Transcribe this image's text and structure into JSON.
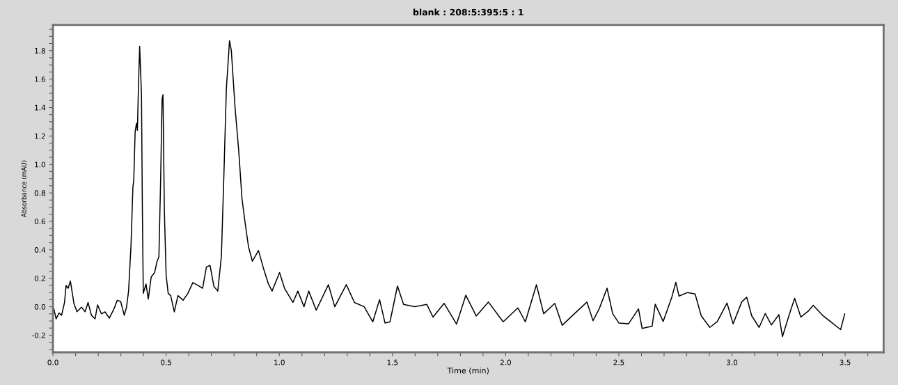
{
  "chart_data": {
    "type": "line",
    "title": "blank : 208:5:395:5 : 1",
    "xlabel": "Time (min)",
    "ylabel": "Absorbance (mAU)",
    "x": [
      0.003,
      0.014,
      0.027,
      0.038,
      0.051,
      0.058,
      0.067,
      0.077,
      0.093,
      0.106,
      0.126,
      0.142,
      0.155,
      0.17,
      0.186,
      0.197,
      0.214,
      0.23,
      0.249,
      0.268,
      0.284,
      0.299,
      0.315,
      0.325,
      0.334,
      0.345,
      0.353,
      0.357,
      0.363,
      0.369,
      0.373,
      0.378,
      0.383,
      0.391,
      0.395,
      0.399,
      0.411,
      0.421,
      0.434,
      0.449,
      0.46,
      0.468,
      0.476,
      0.482,
      0.486,
      0.492,
      0.5,
      0.509,
      0.52,
      0.536,
      0.552,
      0.575,
      0.596,
      0.618,
      0.64,
      0.661,
      0.678,
      0.694,
      0.711,
      0.728,
      0.744,
      0.755,
      0.766,
      0.78,
      0.788,
      0.804,
      0.821,
      0.835,
      0.848,
      0.864,
      0.881,
      0.908,
      0.93,
      0.952,
      0.968,
      1.001,
      1.023,
      1.06,
      1.082,
      1.109,
      1.13,
      1.163,
      1.217,
      1.245,
      1.296,
      1.332,
      1.375,
      1.413,
      1.443,
      1.467,
      1.489,
      1.522,
      1.549,
      1.598,
      1.652,
      1.679,
      1.728,
      1.783,
      1.824,
      1.87,
      1.924,
      1.989,
      2.054,
      2.087,
      2.136,
      2.168,
      2.217,
      2.25,
      2.304,
      2.359,
      2.386,
      2.413,
      2.448,
      2.473,
      2.5,
      2.543,
      2.587,
      2.603,
      2.647,
      2.661,
      2.696,
      2.734,
      2.752,
      2.766,
      2.804,
      2.837,
      2.864,
      2.902,
      2.935,
      2.978,
      3.005,
      3.043,
      3.065,
      3.087,
      3.12,
      3.147,
      3.174,
      3.207,
      3.223,
      3.261,
      3.277,
      3.304,
      3.337,
      3.359,
      3.402,
      3.435,
      3.48,
      3.498
    ],
    "series": [
      {
        "color": "#000000",
        "values": [
          -0.01,
          -0.085,
          -0.044,
          -0.06,
          0.03,
          0.15,
          0.13,
          0.18,
          0.02,
          -0.035,
          -0.003,
          -0.035,
          0.03,
          -0.06,
          -0.085,
          0.013,
          -0.05,
          -0.036,
          -0.08,
          -0.02,
          0.045,
          0.037,
          -0.06,
          -0.003,
          0.11,
          0.44,
          0.84,
          0.89,
          1.23,
          1.29,
          1.24,
          1.57,
          1.83,
          1.49,
          0.68,
          0.094,
          0.16,
          0.054,
          0.21,
          0.24,
          0.32,
          0.35,
          0.92,
          1.46,
          1.49,
          0.68,
          0.22,
          0.094,
          0.078,
          -0.036,
          0.078,
          0.046,
          0.094,
          0.17,
          0.15,
          0.13,
          0.28,
          0.29,
          0.143,
          0.11,
          0.354,
          0.92,
          1.53,
          1.87,
          1.8,
          1.41,
          1.09,
          0.76,
          0.6,
          0.42,
          0.32,
          0.395,
          0.27,
          0.16,
          0.11,
          0.24,
          0.13,
          0.03,
          0.11,
          0.0,
          0.11,
          -0.024,
          0.155,
          0.0,
          0.155,
          0.03,
          0.0,
          -0.106,
          0.05,
          -0.114,
          -0.106,
          0.146,
          0.016,
          0.0,
          0.016,
          -0.073,
          0.024,
          -0.122,
          0.081,
          -0.065,
          0.033,
          -0.106,
          -0.008,
          -0.106,
          0.155,
          -0.049,
          0.024,
          -0.13,
          -0.049,
          0.033,
          -0.098,
          -0.016,
          0.13,
          -0.049,
          -0.114,
          -0.12,
          -0.015,
          -0.153,
          -0.137,
          0.018,
          -0.104,
          0.067,
          0.172,
          0.075,
          0.1,
          0.09,
          -0.063,
          -0.145,
          -0.104,
          0.026,
          -0.12,
          0.034,
          0.067,
          -0.063,
          -0.145,
          -0.047,
          -0.128,
          -0.055,
          -0.21,
          -0.015,
          0.059,
          -0.072,
          -0.031,
          0.01,
          -0.063,
          -0.104,
          -0.161,
          -0.05
        ]
      }
    ],
    "xlim": [
      0,
      3.67
    ],
    "ylim": [
      -0.32,
      1.98
    ],
    "xticks": [
      {
        "value": 0,
        "label": "0.0"
      },
      {
        "value": 0.1,
        "label": null
      },
      {
        "value": 0.2,
        "label": null
      },
      {
        "value": 0.3,
        "label": null
      },
      {
        "value": 0.4,
        "label": null
      },
      {
        "value": 0.5,
        "label": "0.5"
      },
      {
        "value": 0.6,
        "label": null
      },
      {
        "value": 0.7,
        "label": null
      },
      {
        "value": 0.8,
        "label": null
      },
      {
        "value": 0.9,
        "label": null
      },
      {
        "value": 1.0,
        "label": "1.0"
      },
      {
        "value": 1.1,
        "label": null
      },
      {
        "value": 1.2,
        "label": null
      },
      {
        "value": 1.3,
        "label": null
      },
      {
        "value": 1.4,
        "label": null
      },
      {
        "value": 1.5,
        "label": "1.5"
      },
      {
        "value": 1.6,
        "label": null
      },
      {
        "value": 1.7,
        "label": null
      },
      {
        "value": 1.8,
        "label": null
      },
      {
        "value": 1.9,
        "label": null
      },
      {
        "value": 2.0,
        "label": "2.0"
      },
      {
        "value": 2.1,
        "label": null
      },
      {
        "value": 2.2,
        "label": null
      },
      {
        "value": 2.3,
        "label": null
      },
      {
        "value": 2.4,
        "label": null
      },
      {
        "value": 2.5,
        "label": "2.5"
      },
      {
        "value": 2.6,
        "label": null
      },
      {
        "value": 2.7,
        "label": null
      },
      {
        "value": 2.8,
        "label": null
      },
      {
        "value": 2.9,
        "label": null
      },
      {
        "value": 3.0,
        "label": "3.0"
      },
      {
        "value": 3.1,
        "label": null
      },
      {
        "value": 3.2,
        "label": null
      },
      {
        "value": 3.3,
        "label": null
      },
      {
        "value": 3.4,
        "label": null
      },
      {
        "value": 3.5,
        "label": "3.5"
      },
      {
        "value": 3.6,
        "label": null
      }
    ],
    "yticks": [
      {
        "value": -0.3,
        "label": null
      },
      {
        "value": -0.25,
        "label": null
      },
      {
        "value": -0.2,
        "label": "-0.2"
      },
      {
        "value": -0.15,
        "label": null
      },
      {
        "value": -0.1,
        "label": null
      },
      {
        "value": -0.05,
        "label": null
      },
      {
        "value": 0,
        "label": "0.0"
      },
      {
        "value": 0.05,
        "label": null
      },
      {
        "value": 0.1,
        "label": null
      },
      {
        "value": 0.15,
        "label": null
      },
      {
        "value": 0.2,
        "label": "0.2"
      },
      {
        "value": 0.25,
        "label": null
      },
      {
        "value": 0.3,
        "label": null
      },
      {
        "value": 0.35,
        "label": null
      },
      {
        "value": 0.4,
        "label": "0.4"
      },
      {
        "value": 0.45,
        "label": null
      },
      {
        "value": 0.5,
        "label": null
      },
      {
        "value": 0.55,
        "label": null
      },
      {
        "value": 0.6,
        "label": "0.6"
      },
      {
        "value": 0.65,
        "label": null
      },
      {
        "value": 0.7,
        "label": null
      },
      {
        "value": 0.75,
        "label": null
      },
      {
        "value": 0.8,
        "label": "0.8"
      },
      {
        "value": 0.85,
        "label": null
      },
      {
        "value": 0.9,
        "label": null
      },
      {
        "value": 0.95,
        "label": null
      },
      {
        "value": 1.0,
        "label": "1.0"
      },
      {
        "value": 1.05,
        "label": null
      },
      {
        "value": 1.1,
        "label": null
      },
      {
        "value": 1.15,
        "label": null
      },
      {
        "value": 1.2,
        "label": "1.2"
      },
      {
        "value": 1.25,
        "label": null
      },
      {
        "value": 1.3,
        "label": null
      },
      {
        "value": 1.35,
        "label": null
      },
      {
        "value": 1.4,
        "label": "1.4"
      },
      {
        "value": 1.45,
        "label": null
      },
      {
        "value": 1.5,
        "label": null
      },
      {
        "value": 1.55,
        "label": null
      },
      {
        "value": 1.6,
        "label": "1.6"
      },
      {
        "value": 1.65,
        "label": null
      },
      {
        "value": 1.7,
        "label": null
      },
      {
        "value": 1.75,
        "label": null
      },
      {
        "value": 1.8,
        "label": "1.8"
      },
      {
        "value": 1.85,
        "label": null
      },
      {
        "value": 1.9,
        "label": null
      },
      {
        "value": 1.95,
        "label": null
      }
    ],
    "grid": false,
    "legend": false
  }
}
